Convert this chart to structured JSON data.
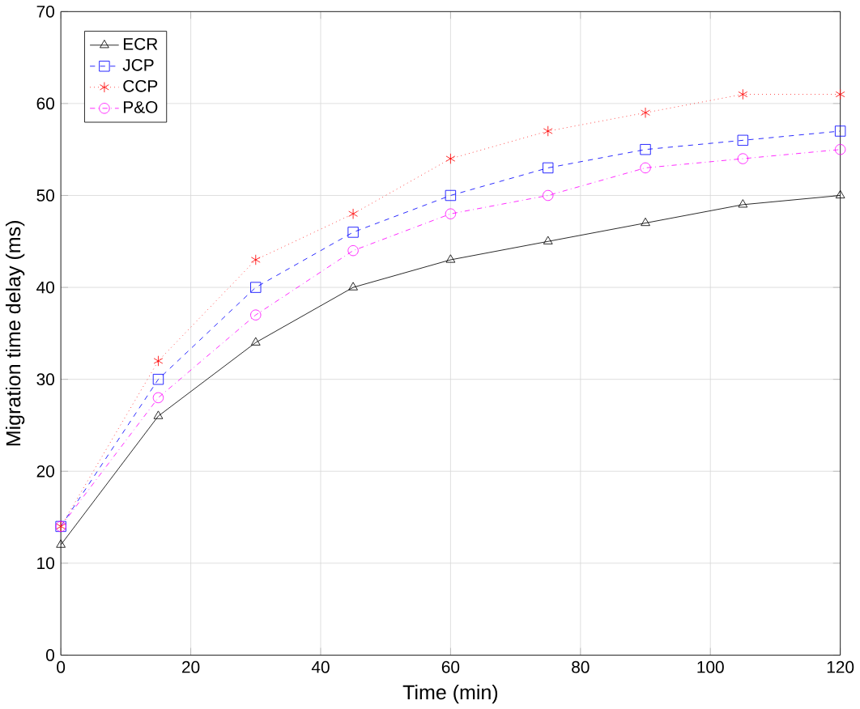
{
  "chart_data": {
    "type": "line",
    "xlabel": "Time (min)",
    "ylabel": "Migration time delay (ms)",
    "x": [
      0,
      15,
      30,
      45,
      60,
      75,
      90,
      105,
      120
    ],
    "series": [
      {
        "name": "ECR",
        "color": "#000000",
        "marker": "triangle",
        "line_style": "solid",
        "values": [
          12,
          26,
          34,
          40,
          43,
          45,
          47,
          49,
          50
        ]
      },
      {
        "name": "JCP",
        "color": "#0000ff",
        "marker": "square",
        "line_style": "dashed",
        "values": [
          14,
          30,
          40,
          46,
          50,
          53,
          55,
          56,
          57
        ]
      },
      {
        "name": "CCP",
        "color": "#ff0000",
        "marker": "cross",
        "line_style": "dotted",
        "values": [
          14,
          32,
          43,
          48,
          54,
          57,
          59,
          61,
          61
        ]
      },
      {
        "name": "P&O",
        "color": "#ff00ff",
        "marker": "circle",
        "line_style": "dashdot",
        "values": [
          14,
          28,
          37,
          44,
          48,
          50,
          53,
          54,
          55
        ]
      }
    ],
    "xlim": [
      0,
      120
    ],
    "xticks": [
      0,
      20,
      40,
      60,
      80,
      100,
      120
    ],
    "ylim": [
      0,
      70
    ],
    "yticks": [
      0,
      10,
      20,
      30,
      40,
      50,
      60,
      70
    ],
    "grid": true,
    "legend": "top left"
  }
}
